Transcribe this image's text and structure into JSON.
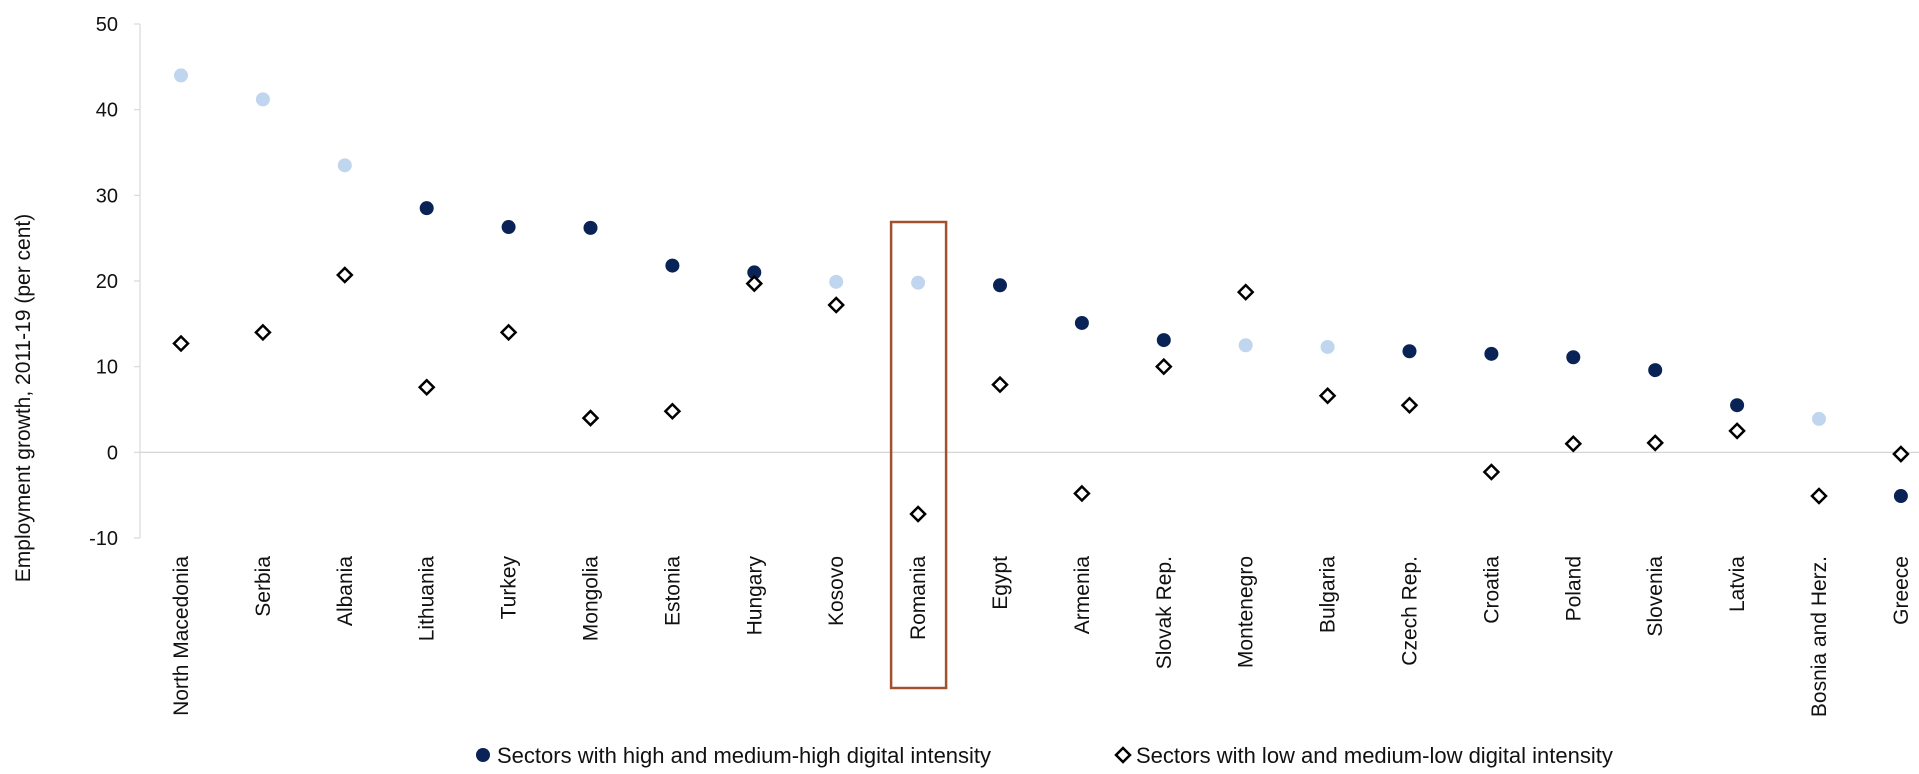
{
  "chart_data": {
    "type": "scatter",
    "title": "",
    "xlabel": "",
    "ylabel": "Employment growth, 2011-19 (per cent)",
    "ylim": [
      -10,
      50
    ],
    "yticks": [
      -10,
      0,
      10,
      20,
      30,
      40,
      50
    ],
    "grid": false,
    "legend_position": "bottom",
    "highlighted_category": "Romania",
    "colors": {
      "high_digital": "#0a2356",
      "high_digital_light": "#c0d6ee",
      "low_digital_marker": "#000000",
      "highlight_box": "#a0522d",
      "zero_line": "#d0d0d0"
    },
    "categories": [
      "North Macedonia",
      "Serbia",
      "Albania",
      "Lithuania",
      "Turkey",
      "Mongolia",
      "Estonia",
      "Hungary",
      "Kosovo",
      "Romania",
      "Egypt",
      "Armenia",
      "Slovak Rep.",
      "Montenegro",
      "Bulgaria",
      "Czech Rep.",
      "Croatia",
      "Poland",
      "Slovenia",
      "Latvia",
      "Bosnia and Herz.",
      "Greece"
    ],
    "series": [
      {
        "name": "Sectors with high and medium-high digital intensity",
        "marker": "circle",
        "values": [
          44,
          41.2,
          33.5,
          28.5,
          26.3,
          26.2,
          21.8,
          21.0,
          19.9,
          19.8,
          19.5,
          15.1,
          13.1,
          12.5,
          12.3,
          11.8,
          11.5,
          11.1,
          9.6,
          5.5,
          3.9,
          -5.1
        ],
        "light_markers": [
          true,
          true,
          true,
          false,
          false,
          false,
          false,
          false,
          true,
          true,
          false,
          false,
          false,
          true,
          true,
          false,
          false,
          false,
          false,
          false,
          true,
          false
        ]
      },
      {
        "name": "Sectors with low and medium-low digital intensity",
        "marker": "diamond",
        "values": [
          12.7,
          14.0,
          20.7,
          7.6,
          14.0,
          4.0,
          4.8,
          19.7,
          17.2,
          -7.2,
          7.9,
          -4.8,
          10.0,
          18.7,
          6.6,
          5.5,
          -2.3,
          1.0,
          1.1,
          2.5,
          -5.1,
          -0.2
        ]
      }
    ]
  }
}
